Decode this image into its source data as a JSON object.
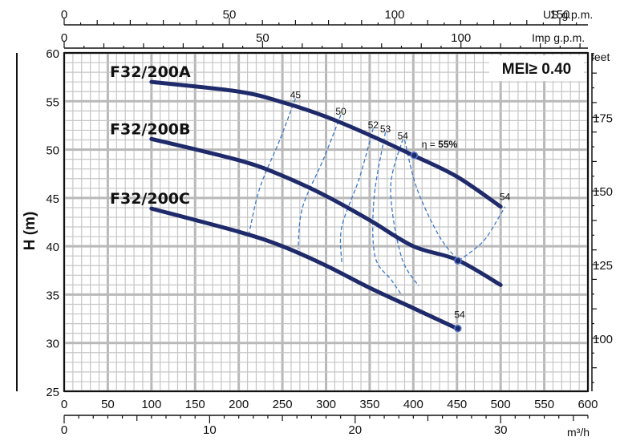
{
  "chart_data": {
    "type": "line",
    "mei_badge": "MEI≥ 0.40",
    "axes": {
      "x_bottom": {
        "unit": "",
        "ticks": [
          0,
          50,
          100,
          150,
          200,
          250,
          300,
          350,
          400,
          450,
          500,
          550,
          600
        ],
        "range": [
          0,
          600
        ]
      },
      "x_m3h": {
        "unit": "m³/h",
        "ticks": [
          0,
          10,
          20,
          30
        ],
        "range": [
          0,
          36
        ]
      },
      "x_us_gpm": {
        "unit": "US g.p.m.",
        "ticks": [
          0,
          50,
          100,
          150
        ],
        "range": [
          0,
          158.5
        ]
      },
      "x_imp_gpm": {
        "unit": "Imp g.p.m.",
        "ticks": [
          0,
          50,
          100
        ],
        "range": [
          0,
          132
        ]
      },
      "y_left": {
        "label": "H (m)",
        "ticks": [
          25,
          30,
          35,
          40,
          45,
          50,
          55,
          60
        ],
        "range": [
          25,
          60
        ]
      },
      "y_right": {
        "unit": "feet",
        "ticks": [
          100,
          125,
          150,
          175
        ],
        "range": [
          82.02,
          196.85
        ]
      }
    },
    "series": [
      {
        "name": "F32/200A",
        "x": [
          100,
          200,
          250,
          300,
          350,
          400,
          450,
          500
        ],
        "y": [
          57.0,
          56.0,
          54.9,
          53.4,
          51.5,
          49.4,
          47.2,
          44.1
        ]
      },
      {
        "name": "F32/200B",
        "x": [
          100,
          200,
          250,
          300,
          350,
          400,
          450,
          500
        ],
        "y": [
          51.1,
          48.9,
          47.3,
          45.2,
          42.7,
          40.0,
          38.6,
          36.0
        ]
      },
      {
        "name": "F32/200C",
        "x": [
          100,
          200,
          250,
          300,
          350,
          400,
          450
        ],
        "y": [
          43.9,
          41.5,
          40.0,
          38.0,
          35.7,
          33.6,
          31.5
        ]
      }
    ],
    "efficiency_labels": [
      {
        "text": "45",
        "x": 265,
        "y": 55.3
      },
      {
        "text": "50",
        "x": 317,
        "y": 53.6
      },
      {
        "text": "52",
        "x": 354,
        "y": 52.2
      },
      {
        "text": "53",
        "x": 368,
        "y": 51.8
      },
      {
        "text": "54",
        "x": 388,
        "y": 51.1
      },
      {
        "text": "η = 55%",
        "x": 430,
        "y": 50.2
      },
      {
        "text": "54",
        "x": 505,
        "y": 44.8
      },
      {
        "text": "54",
        "x": 453,
        "y": 32.6
      }
    ]
  }
}
